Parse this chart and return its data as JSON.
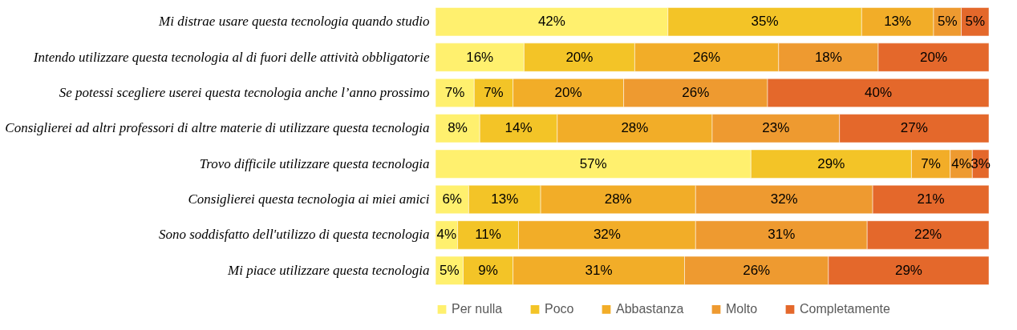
{
  "chart_data": {
    "type": "bar",
    "orientation": "horizontal",
    "stacked": true,
    "legend": "bottom",
    "grid": false,
    "categories": [
      "Mi distrae usare questa tecnologia quando studio",
      "Intendo utilizzare questa tecnologia al di fuori delle attività obbligatorie",
      "Se potessi scegliere userei questa tecnologia anche l’anno prossimo",
      "Consiglierei ad altri professori di altre materie di utilizzare questa tecnologia",
      "Trovo difficile utilizzare questa tecnologia",
      "Consiglierei questa tecnologia ai miei amici",
      "Sono soddisfatto dell'utilizzo di questa tecnologia",
      "Mi piace utilizzare questa tecnologia"
    ],
    "series": [
      {
        "name": "Per nulla",
        "color": "#fff06e",
        "values": [
          42,
          16,
          7,
          8,
          57,
          6,
          4,
          5
        ],
        "value_labels": [
          "42%",
          "16%",
          "7%",
          "8%",
          "57%",
          "6%",
          "4%",
          "5%"
        ]
      },
      {
        "name": "Poco",
        "color": "#f3c427",
        "values": [
          35,
          20,
          7,
          14,
          29,
          13,
          11,
          9
        ],
        "value_labels": [
          "35%",
          "20%",
          "7%",
          "14%",
          "29%",
          "13%",
          "11%",
          "9%"
        ]
      },
      {
        "name": "Abbastanza",
        "color": "#f2ad28",
        "values": [
          13,
          26,
          20,
          28,
          7,
          28,
          32,
          31
        ],
        "value_labels": [
          "13%",
          "26%",
          "20%",
          "28%",
          "7%",
          "28%",
          "32%",
          "31%"
        ]
      },
      {
        "name": "Molto",
        "color": "#ee9a30",
        "values": [
          5,
          18,
          26,
          23,
          4,
          32,
          31,
          26
        ],
        "value_labels": [
          "5%",
          "18%",
          "26%",
          "23%",
          "4%",
          "32%",
          "31%",
          "26%"
        ]
      },
      {
        "name": "Completamente",
        "color": "#e4682b",
        "values": [
          5,
          20,
          40,
          27,
          3,
          21,
          22,
          29
        ],
        "value_labels": [
          "5%",
          "20%",
          "40%",
          "27%",
          "3%",
          "21%",
          "22%",
          "29%"
        ]
      }
    ]
  }
}
